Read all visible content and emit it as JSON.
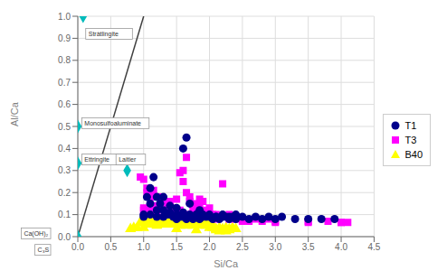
{
  "chart_data": {
    "type": "scatter",
    "xlabel": "Si/Ca",
    "ylabel": "Al/Ca",
    "xlim": [
      0,
      4.5
    ],
    "ylim": [
      0,
      1.0
    ],
    "xticks": [
      {
        "value": 0,
        "label": "0.0"
      },
      0.5,
      {
        "value": 1,
        "label": "1.0"
      },
      1.5,
      {
        "value": 2,
        "label": "2.0"
      },
      2.5,
      {
        "value": 3,
        "label": "3.0"
      },
      3.5,
      {
        "value": 4,
        "label": "4.0"
      },
      4.5
    ],
    "yticks": [
      {
        "value": 0,
        "label": "0.0"
      },
      0.1,
      0.2,
      0.3,
      0.4,
      0.5,
      0.6,
      0.7,
      0.8,
      0.9,
      {
        "value": 1.0,
        "label": "1.0"
      }
    ],
    "grid": true,
    "legend": "right",
    "series": [
      {
        "name": "T1",
        "color": "#00008b",
        "marker": "circle",
        "values": [
          [
            1.0,
            0.1
          ],
          [
            1.05,
            0.18
          ],
          [
            1.1,
            0.22
          ],
          [
            1.15,
            0.27
          ],
          [
            1.2,
            0.18
          ],
          [
            1.25,
            0.15
          ],
          [
            1.3,
            0.12
          ],
          [
            1.35,
            0.1
          ],
          [
            1.4,
            0.1
          ],
          [
            1.45,
            0.09
          ],
          [
            1.5,
            0.1
          ],
          [
            1.55,
            0.09
          ],
          [
            1.6,
            0.09
          ],
          [
            1.65,
            0.08
          ],
          [
            1.7,
            0.1
          ],
          [
            1.75,
            0.08
          ],
          [
            1.8,
            0.09
          ],
          [
            1.85,
            0.08
          ],
          [
            1.9,
            0.1
          ],
          [
            1.95,
            0.09
          ],
          [
            2.0,
            0.09
          ],
          [
            2.05,
            0.08
          ],
          [
            2.1,
            0.09
          ],
          [
            2.15,
            0.08
          ],
          [
            2.2,
            0.09
          ],
          [
            2.25,
            0.09
          ],
          [
            2.3,
            0.08
          ],
          [
            2.35,
            0.09
          ],
          [
            2.4,
            0.08
          ],
          [
            2.5,
            0.09
          ],
          [
            2.6,
            0.08
          ],
          [
            2.7,
            0.09
          ],
          [
            2.8,
            0.08
          ],
          [
            2.9,
            0.09
          ],
          [
            3.0,
            0.08
          ],
          [
            3.1,
            0.09
          ],
          [
            3.3,
            0.08
          ],
          [
            3.5,
            0.08
          ],
          [
            3.7,
            0.08
          ],
          [
            3.9,
            0.08
          ],
          [
            1.1,
            0.15
          ],
          [
            1.2,
            0.12
          ],
          [
            1.3,
            0.18
          ],
          [
            1.4,
            0.14
          ],
          [
            1.5,
            0.13
          ],
          [
            1.6,
            0.4
          ],
          [
            1.65,
            0.45
          ],
          [
            1.7,
            0.15
          ],
          [
            1.8,
            0.1
          ],
          [
            1.85,
            0.12
          ],
          [
            1.0,
            0.09
          ],
          [
            1.1,
            0.1
          ],
          [
            1.2,
            0.09
          ],
          [
            1.3,
            0.09
          ],
          [
            1.4,
            0.11
          ],
          [
            1.5,
            0.08
          ],
          [
            1.6,
            0.11
          ],
          [
            1.7,
            0.09
          ],
          [
            1.8,
            0.1
          ],
          [
            1.9,
            0.09
          ],
          [
            2.0,
            0.1
          ],
          [
            2.1,
            0.09
          ],
          [
            2.2,
            0.1
          ],
          [
            2.3,
            0.09
          ],
          [
            2.4,
            0.1
          ]
        ]
      },
      {
        "name": "T3",
        "color": "#ff00ff",
        "marker": "square",
        "values": [
          [
            1.0,
            0.13
          ],
          [
            1.05,
            0.2
          ],
          [
            1.1,
            0.19
          ],
          [
            1.15,
            0.21
          ],
          [
            1.2,
            0.14
          ],
          [
            1.25,
            0.18
          ],
          [
            1.3,
            0.15
          ],
          [
            1.35,
            0.12
          ],
          [
            1.4,
            0.16
          ],
          [
            1.45,
            0.13
          ],
          [
            1.5,
            0.17
          ],
          [
            1.55,
            0.12
          ],
          [
            1.6,
            0.3
          ],
          [
            1.65,
            0.36
          ],
          [
            1.7,
            0.16
          ],
          [
            1.75,
            0.12
          ],
          [
            1.8,
            0.13
          ],
          [
            1.85,
            0.17
          ],
          [
            1.9,
            0.16
          ],
          [
            1.95,
            0.12
          ],
          [
            2.0,
            0.13
          ],
          [
            2.05,
            0.1
          ],
          [
            2.1,
            0.08
          ],
          [
            2.15,
            0.09
          ],
          [
            2.2,
            0.24
          ],
          [
            2.25,
            0.09
          ],
          [
            2.3,
            0.08
          ],
          [
            2.35,
            0.09
          ],
          [
            2.4,
            0.08
          ],
          [
            2.5,
            0.07
          ],
          [
            2.6,
            0.07
          ],
          [
            2.7,
            0.08
          ],
          [
            2.8,
            0.07
          ],
          [
            2.9,
            0.08
          ],
          [
            3.0,
            0.07
          ],
          [
            3.5,
            0.07
          ],
          [
            3.8,
            0.07
          ],
          [
            4.0,
            0.065
          ],
          [
            4.1,
            0.065
          ],
          [
            1.0,
            0.12
          ],
          [
            1.1,
            0.13
          ],
          [
            1.2,
            0.11
          ],
          [
            1.3,
            0.13
          ],
          [
            1.4,
            0.12
          ],
          [
            1.5,
            0.1
          ],
          [
            1.6,
            0.09
          ],
          [
            1.7,
            0.1
          ],
          [
            1.8,
            0.1
          ],
          [
            1.9,
            0.1
          ],
          [
            2.0,
            0.09
          ],
          [
            2.1,
            0.1
          ],
          [
            2.2,
            0.09
          ],
          [
            2.3,
            0.1
          ],
          [
            2.4,
            0.09
          ],
          [
            0.95,
            0.27
          ],
          [
            1.0,
            0.26
          ],
          [
            1.05,
            0.22
          ],
          [
            1.1,
            0.2
          ],
          [
            1.15,
            0.18
          ],
          [
            1.55,
            0.29
          ],
          [
            1.6,
            0.25
          ],
          [
            1.65,
            0.2
          ],
          [
            1.7,
            0.18
          ],
          [
            1.75,
            0.15
          ],
          [
            1.8,
            0.14
          ],
          [
            1.85,
            0.13
          ],
          [
            1.9,
            0.11
          ],
          [
            2.5,
            0.08
          ],
          [
            3.0,
            0.065
          ],
          [
            3.5,
            0.065
          ],
          [
            4.0,
            0.065
          ]
        ]
      },
      {
        "name": "B40",
        "color": "#ffff00",
        "marker": "triangle",
        "values": [
          [
            1.0,
            0.07
          ],
          [
            1.05,
            0.08
          ],
          [
            1.1,
            0.065
          ],
          [
            1.15,
            0.07
          ],
          [
            1.2,
            0.075
          ],
          [
            1.25,
            0.065
          ],
          [
            1.3,
            0.07
          ],
          [
            1.35,
            0.065
          ],
          [
            1.4,
            0.07
          ],
          [
            1.45,
            0.065
          ],
          [
            1.5,
            0.075
          ],
          [
            1.55,
            0.07
          ],
          [
            1.6,
            0.065
          ],
          [
            1.65,
            0.07
          ],
          [
            1.7,
            0.065
          ],
          [
            1.75,
            0.07
          ],
          [
            1.8,
            0.065
          ],
          [
            1.85,
            0.07
          ],
          [
            1.9,
            0.065
          ],
          [
            1.95,
            0.07
          ],
          [
            2.0,
            0.065
          ],
          [
            2.05,
            0.04
          ],
          [
            2.1,
            0.035
          ],
          [
            2.15,
            0.04
          ],
          [
            2.2,
            0.035
          ],
          [
            2.25,
            0.04
          ],
          [
            2.3,
            0.035
          ],
          [
            2.35,
            0.04
          ],
          [
            2.4,
            0.035
          ],
          [
            0.95,
            0.065
          ],
          [
            1.0,
            0.06
          ],
          [
            1.05,
            0.065
          ],
          [
            1.1,
            0.055
          ],
          [
            1.15,
            0.06
          ],
          [
            1.2,
            0.05
          ],
          [
            1.25,
            0.055
          ],
          [
            1.3,
            0.06
          ],
          [
            1.35,
            0.055
          ],
          [
            1.4,
            0.06
          ],
          [
            1.45,
            0.055
          ],
          [
            1.5,
            0.055
          ],
          [
            1.55,
            0.05
          ],
          [
            1.6,
            0.055
          ],
          [
            1.65,
            0.05
          ],
          [
            1.7,
            0.055
          ],
          [
            1.75,
            0.05
          ],
          [
            1.8,
            0.055
          ],
          [
            1.85,
            0.05
          ],
          [
            1.9,
            0.055
          ],
          [
            1.95,
            0.05
          ],
          [
            2.0,
            0.055
          ],
          [
            2.05,
            0.05
          ],
          [
            2.1,
            0.03
          ],
          [
            2.15,
            0.025
          ],
          [
            2.2,
            0.03
          ],
          [
            2.25,
            0.025
          ],
          [
            2.3,
            0.03
          ],
          [
            0.9,
            0.04
          ],
          [
            1.0,
            0.04
          ],
          [
            1.5,
            0.035
          ],
          [
            1.8,
            0.03
          ],
          [
            2.0,
            0.04
          ],
          [
            0.8,
            0.035
          ],
          [
            0.85,
            0.04
          ]
        ]
      },
      {
        "color": "#00bbbb",
        "marker": "diamond",
        "values": [
          [
            0.08,
            1.0
          ],
          [
            0.0,
            0.5
          ],
          [
            0.0,
            0.333
          ],
          [
            0.75,
            0.3
          ],
          [
            0.0,
            0.0
          ]
        ]
      },
      {
        "type": "line",
        "color": "#404040",
        "values": [
          [
            0,
            0
          ],
          [
            1,
            1
          ]
        ]
      }
    ],
    "annotations": [
      {
        "text": "Stràtlingite",
        "x": 0.12,
        "y": 0.92
      },
      {
        "text": "Monosulfoaluminate",
        "x": 0.06,
        "y": 0.515
      },
      {
        "text": "Ettringite",
        "x": 0.06,
        "y": 0.35
      },
      {
        "text": "Laitier",
        "x": 0.58,
        "y": 0.35
      },
      {
        "text": "Ca(OH)₂",
        "x": -0.15,
        "y": 0.015
      },
      {
        "text": "C₃S",
        "x": -0.15,
        "y": -0.06
      }
    ]
  }
}
